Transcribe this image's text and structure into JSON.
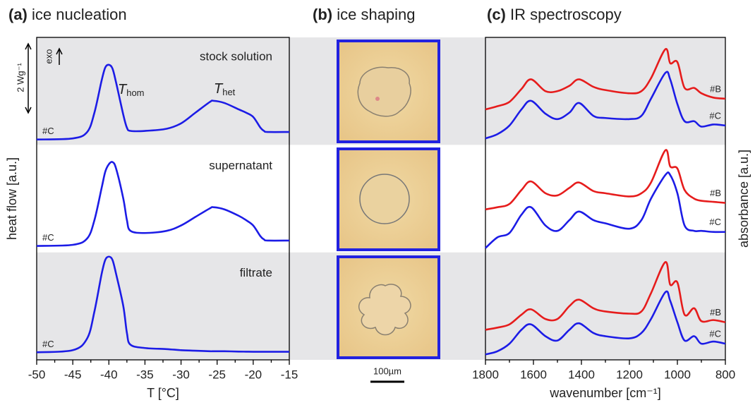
{
  "chart_data": [
    {
      "type": "line",
      "label": "(a)",
      "title": "ice nucleation",
      "x_label": "T [°C]",
      "y_label": "heat flow [a.u.]",
      "xlim": [
        -50,
        -15
      ],
      "xticks": [
        -50,
        -45,
        -40,
        -35,
        -30,
        -25,
        -20,
        -15
      ],
      "xminorticks": [
        -47.5,
        -42.5,
        -37.5,
        -32.5,
        -27.5,
        -22.5,
        -17.5
      ],
      "ylim": [
        0,
        1
      ],
      "x": [
        -50,
        -45,
        -43,
        -42,
        -41,
        -40.5,
        -40,
        -39.5,
        -39,
        -38,
        -37.5,
        -37,
        -35,
        -32,
        -30,
        -28,
        -26,
        -25.5,
        -24,
        -22,
        -21,
        -20,
        -19,
        -18.5,
        -18,
        -15
      ],
      "strips": [
        {
          "label": "stock solution",
          "series": [
            {
              "name": "#C",
              "color": "#1c1ce6",
              "values": [
                0.05,
                0.06,
                0.12,
                0.3,
                0.6,
                0.72,
                0.745,
                0.71,
                0.58,
                0.28,
                0.16,
                0.13,
                0.13,
                0.15,
                0.2,
                0.3,
                0.4,
                0.41,
                0.39,
                0.33,
                0.3,
                0.26,
                0.16,
                0.13,
                0.12,
                0.12
              ]
            }
          ]
        },
        {
          "label": "supernatant",
          "series": [
            {
              "name": "#C",
              "color": "#1c1ce6",
              "values": [
                0.06,
                0.07,
                0.13,
                0.3,
                0.6,
                0.75,
                0.82,
                0.84,
                0.78,
                0.5,
                0.3,
                0.2,
                0.18,
                0.2,
                0.25,
                0.33,
                0.41,
                0.42,
                0.4,
                0.34,
                0.3,
                0.25,
                0.15,
                0.12,
                0.11,
                0.11
              ]
            }
          ]
        },
        {
          "label": "filtrate",
          "series": [
            {
              "name": "#C",
              "color": "#1c1ce6",
              "values": [
                0.07,
                0.09,
                0.2,
                0.45,
                0.8,
                0.93,
                0.96,
                0.93,
                0.8,
                0.5,
                0.25,
                0.14,
                0.11,
                0.1,
                0.09,
                0.085,
                0.08,
                0.08,
                0.08,
                0.077,
                0.076,
                0.075,
                0.075,
                0.075,
                0.075,
                0.075
              ]
            }
          ]
        }
      ],
      "annotations": {
        "t_hom": {
          "symbol": "T",
          "sub": "hom"
        },
        "t_het": {
          "symbol": "T",
          "sub": "het"
        },
        "scale": "2 Wg⁻¹",
        "exo": "exo"
      }
    },
    {
      "type": "image",
      "label": "(b)",
      "title": "ice shaping",
      "scale_bar": "100µm"
    },
    {
      "type": "line",
      "label": "(c)",
      "title": "IR spectroscopy",
      "x_label": "wavenumber [cm⁻¹]",
      "y_label": "absorbance [a.u.]",
      "xlim": [
        1800,
        800
      ],
      "xticks": [
        1800,
        1600,
        1400,
        1200,
        1000,
        800
      ],
      "xminorticks": [
        1700,
        1500,
        1300,
        1100,
        900
      ],
      "ylim": [
        0,
        1
      ],
      "x": [
        1800,
        1750,
        1700,
        1650,
        1610,
        1550,
        1500,
        1450,
        1410,
        1350,
        1300,
        1200,
        1150,
        1110,
        1050,
        1030,
        1000,
        970,
        930,
        900,
        850,
        800
      ],
      "strips": [
        {
          "series": [
            {
              "name": "#B",
              "color": "#e61c1c",
              "values": [
                0.33,
                0.36,
                0.4,
                0.52,
                0.61,
                0.5,
                0.5,
                0.55,
                0.61,
                0.54,
                0.51,
                0.48,
                0.5,
                0.62,
                0.89,
                0.76,
                0.77,
                0.53,
                0.53,
                0.48,
                0.44,
                0.43
              ]
            },
            {
              "name": "#C",
              "color": "#1c1ce6",
              "values": [
                0.06,
                0.1,
                0.18,
                0.33,
                0.41,
                0.29,
                0.24,
                0.3,
                0.39,
                0.27,
                0.25,
                0.24,
                0.27,
                0.43,
                0.67,
                0.61,
                0.38,
                0.22,
                0.22,
                0.17,
                0.19,
                0.18
              ]
            }
          ]
        },
        {
          "series": [
            {
              "name": "#B",
              "color": "#e61c1c",
              "values": [
                0.4,
                0.42,
                0.45,
                0.58,
                0.66,
                0.55,
                0.53,
                0.6,
                0.65,
                0.57,
                0.55,
                0.52,
                0.55,
                0.65,
                0.95,
                0.8,
                0.78,
                0.58,
                0.5,
                0.48,
                0.47,
                0.46
              ]
            },
            {
              "name": "#C",
              "color": "#1c1ce6",
              "values": [
                0.04,
                0.14,
                0.18,
                0.35,
                0.42,
                0.25,
                0.2,
                0.3,
                0.38,
                0.3,
                0.27,
                0.22,
                0.3,
                0.5,
                0.72,
                0.72,
                0.55,
                0.25,
                0.2,
                0.2,
                0.19,
                0.19
              ]
            }
          ]
        },
        {
          "series": [
            {
              "name": "#B",
              "color": "#e61c1c",
              "values": [
                0.28,
                0.3,
                0.33,
                0.42,
                0.47,
                0.38,
                0.38,
                0.5,
                0.56,
                0.48,
                0.45,
                0.43,
                0.45,
                0.62,
                0.91,
                0.7,
                0.72,
                0.42,
                0.48,
                0.36,
                0.37,
                0.35
              ]
            },
            {
              "name": "#C",
              "color": "#1c1ce6",
              "values": [
                0.05,
                0.08,
                0.15,
                0.28,
                0.33,
                0.22,
                0.18,
                0.28,
                0.34,
                0.25,
                0.22,
                0.2,
                0.25,
                0.38,
                0.63,
                0.55,
                0.35,
                0.18,
                0.22,
                0.15,
                0.17,
                0.15
              ]
            }
          ]
        }
      ]
    }
  ]
}
